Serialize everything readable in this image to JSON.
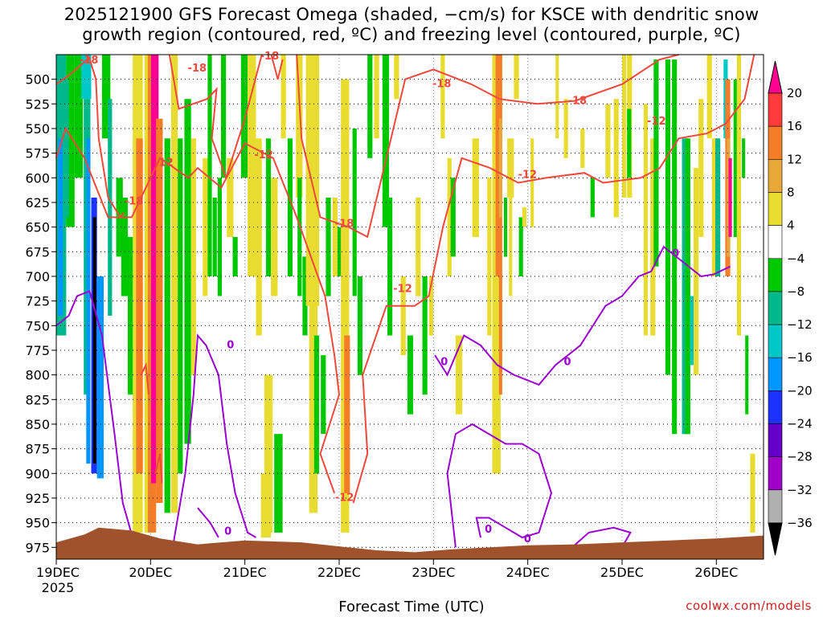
{
  "chart_data": {
    "type": "heatmap",
    "title_line1": "2025121900 GFS Forecast Omega (shaded, −cm/s) for KSCE with dendritic snow",
    "title_line2": "growth region (contoured, red, ºC) and freezing level (contoured, purple, ºC)",
    "xlabel": "Forecast Time (UTC)",
    "x_ticks": [
      "19DEC",
      "20DEC",
      "21DEC",
      "22DEC",
      "23DEC",
      "24DEC",
      "25DEC",
      "26DEC"
    ],
    "x_tick_year": "2025",
    "x_range_days": [
      0,
      7.5
    ],
    "y_ticks": [
      500,
      525,
      550,
      575,
      600,
      625,
      650,
      675,
      700,
      725,
      750,
      775,
      800,
      825,
      850,
      875,
      900,
      925,
      950,
      975
    ],
    "y_range_hpa": [
      475,
      987
    ],
    "colorbar": {
      "labels": [
        "20",
        "16",
        "12",
        "8",
        "4",
        "−4",
        "−8",
        "−12",
        "−16",
        "−20",
        "−24",
        "−28",
        "−32",
        "−36"
      ],
      "colors": [
        "#ff0090",
        "#ff3a3a",
        "#f57d28",
        "#e8a838",
        "#e8dc30",
        "#ffffff",
        "#00c800",
        "#00b88c",
        "#00c8c8",
        "#0096ff",
        "#1e32ff",
        "#6400c8",
        "#a000c8",
        "#b0b0b0",
        "#000000"
      ]
    },
    "contour_labels": {
      "dgz_minus18": "-18",
      "dgz_minus12": "-12",
      "freezing": "0"
    },
    "terrain_color": "#a0522d",
    "dgz_color": "#f0483c",
    "freezing_color": "#9a00d0"
  },
  "credit": "coolwx.com/models"
}
